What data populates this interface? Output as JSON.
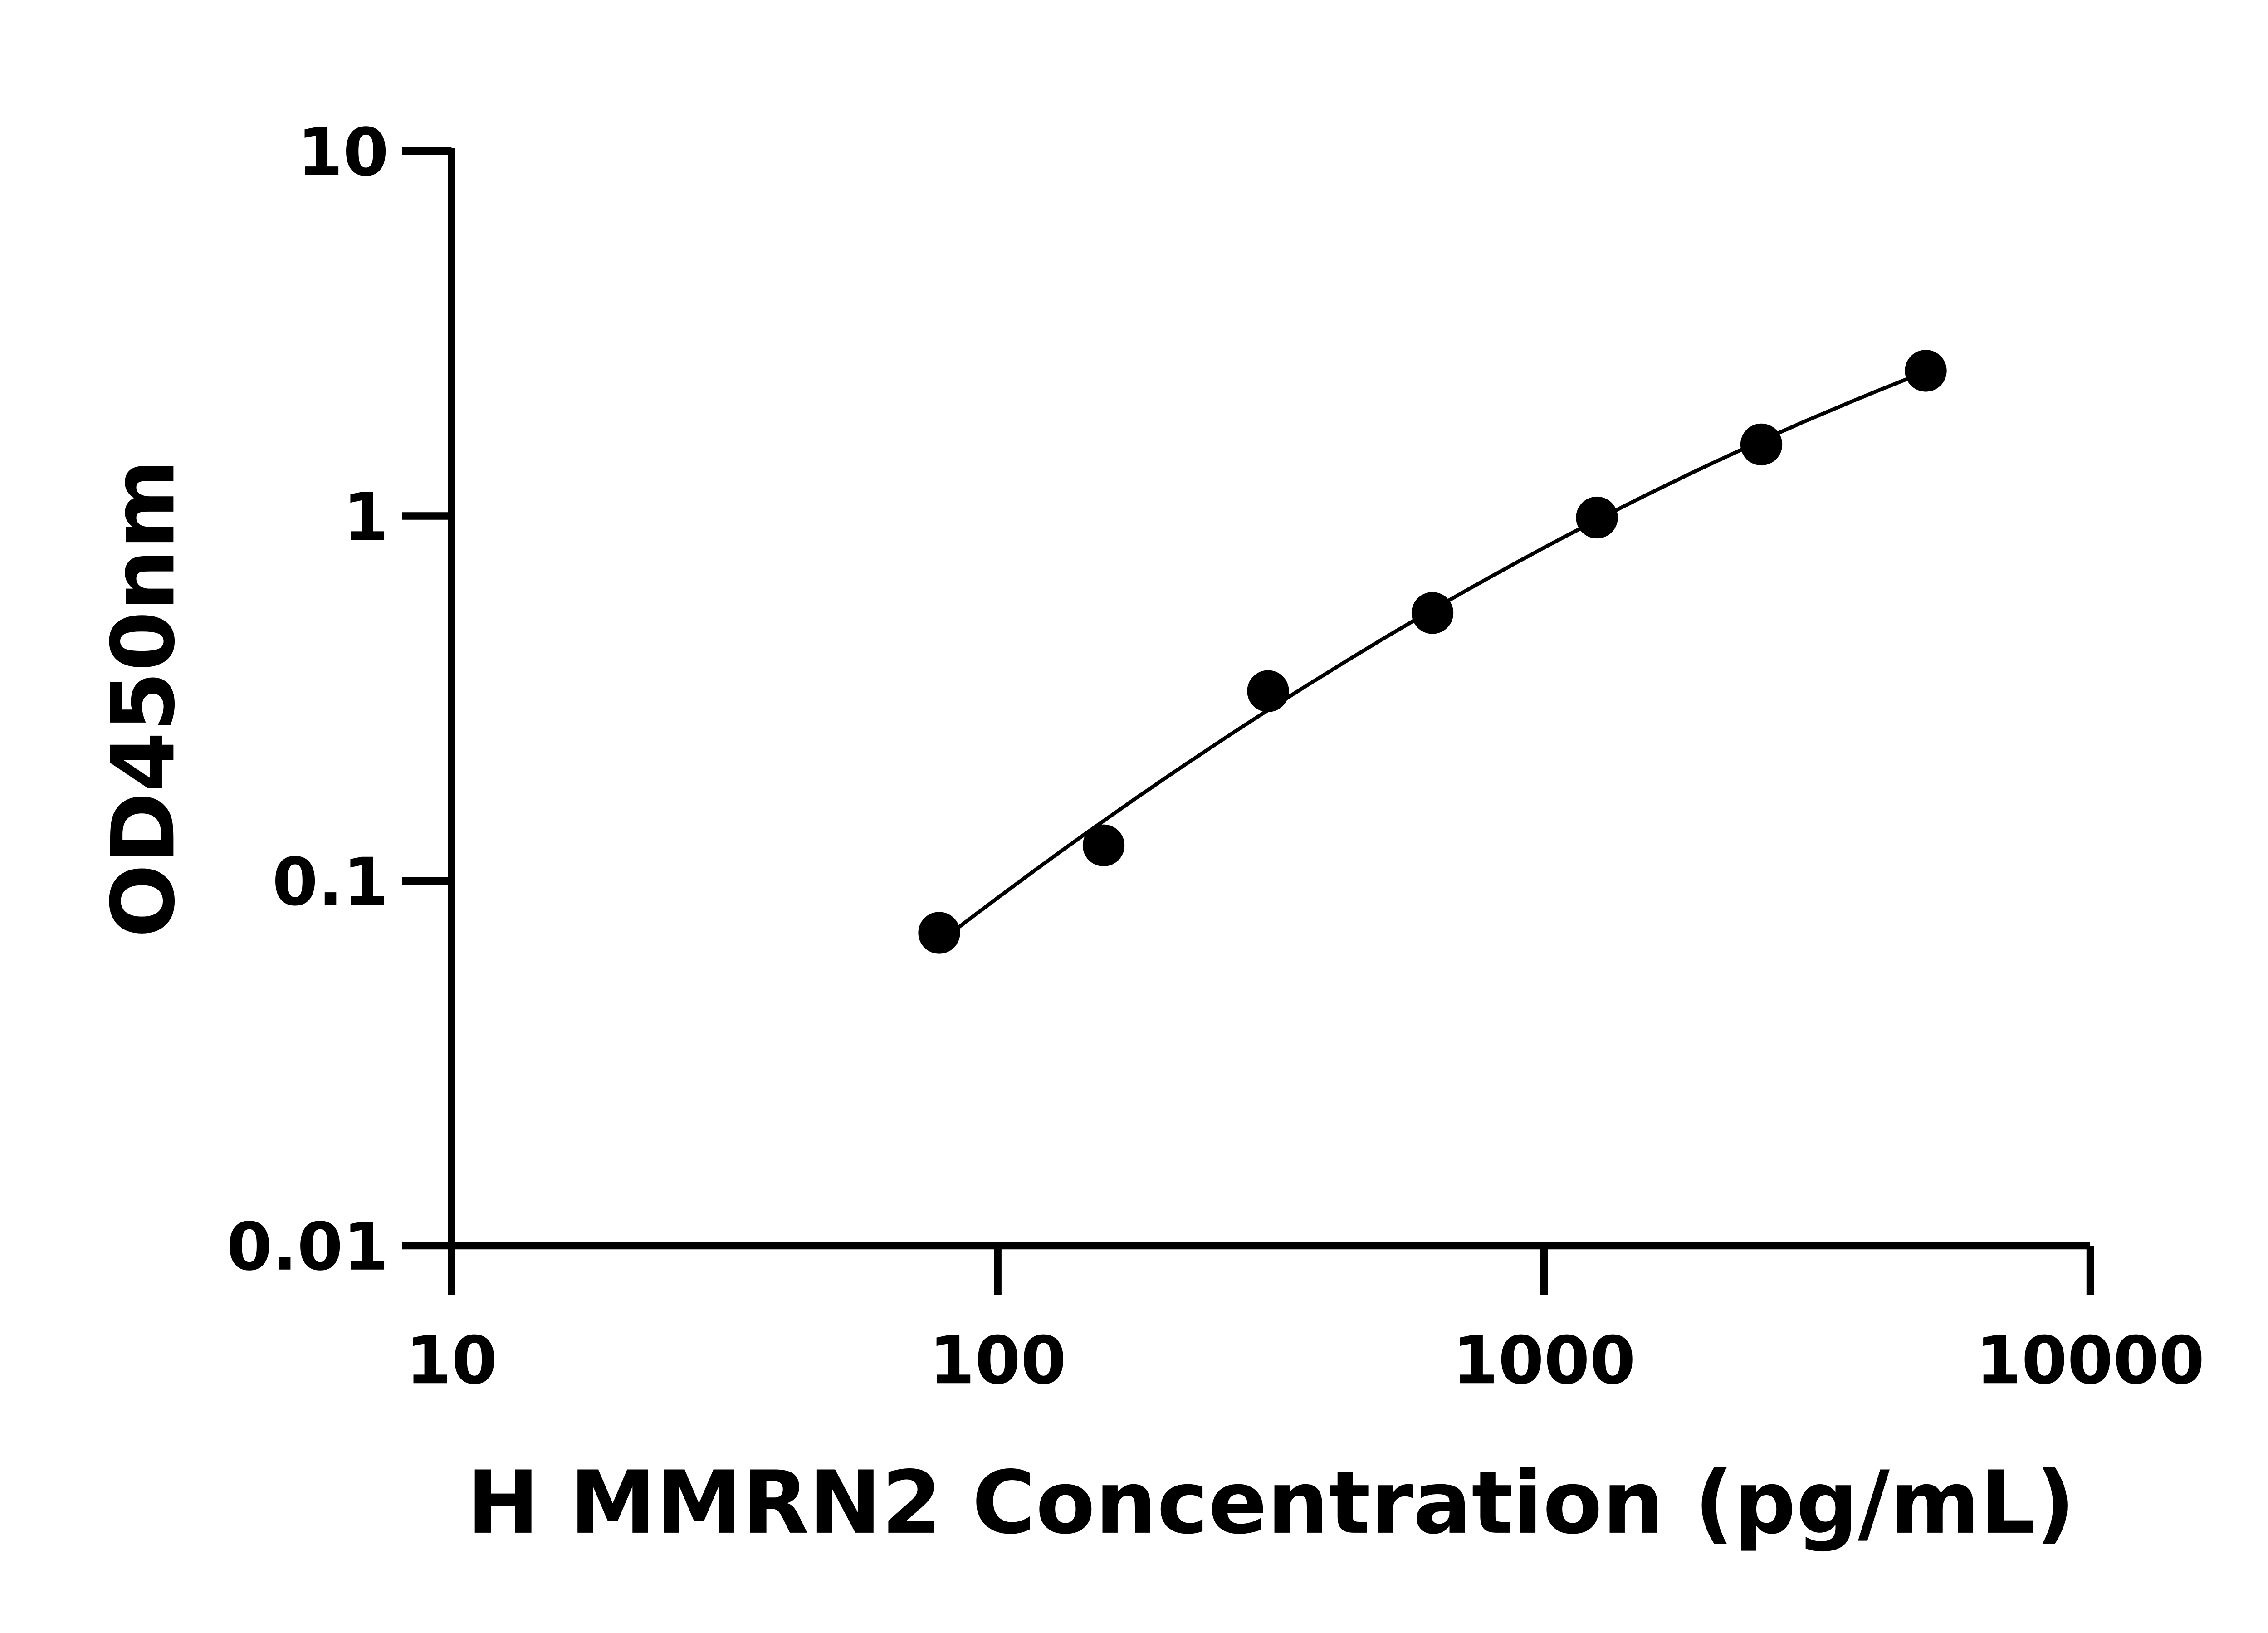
{
  "chart_data": {
    "type": "scatter",
    "title": "",
    "xlabel": "H MMRN2 Concentration (pg/mL)",
    "ylabel": "OD450nm",
    "x_scale": "log",
    "y_scale": "log",
    "xlim": [
      10,
      10000
    ],
    "ylim": [
      0.01,
      10
    ],
    "x_ticks": [
      "10",
      "100",
      "1000",
      "10000"
    ],
    "y_ticks": [
      "0.01",
      "0.1",
      "1",
      "10"
    ],
    "grid": false,
    "legend": "none",
    "fit_curve": true,
    "marker_color": "#000000",
    "line_color": "#000000",
    "series": [
      {
        "x": [
          78.125,
          156.25,
          312.5,
          625,
          1250,
          2500,
          5000
        ],
        "y": [
          0.072,
          0.125,
          0.331,
          0.542,
          0.99,
          1.57,
          2.5
        ]
      }
    ]
  }
}
